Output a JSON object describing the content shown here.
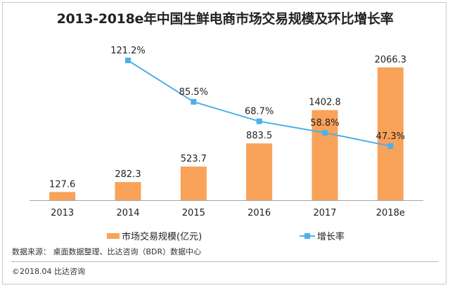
{
  "chart_data": {
    "type": "bar",
    "title": "2013-2018e年中国生鲜电商市场交易规模及环比增长率",
    "categories": [
      "2013",
      "2014",
      "2015",
      "2016",
      "2017",
      "2018e"
    ],
    "xlabel": "",
    "ylabel": "",
    "grid": false,
    "legend_position": "bottom",
    "series": [
      {
        "name": "市场交易规模(亿元)",
        "type": "bar",
        "color": "#f9a25a",
        "values": [
          127.6,
          282.3,
          523.7,
          883.5,
          1402.8,
          2066.3
        ],
        "labels": [
          "127.6",
          "282.3",
          "523.7",
          "883.5",
          "1402.8",
          "2066.3"
        ]
      },
      {
        "name": "增长率",
        "type": "line",
        "color": "#4eb0ea",
        "unit": "%",
        "values": [
          null,
          121.2,
          85.5,
          68.7,
          58.8,
          47.3
        ],
        "labels": [
          "",
          "121.2%",
          "85.5%",
          "68.7%",
          "58.8%",
          "47.3%"
        ]
      }
    ],
    "ylim_bar": [
      0,
      2200
    ],
    "ylim_line": [
      0,
      140
    ]
  },
  "legend": {
    "bar_label": "市场交易规模(亿元)",
    "line_label": "增长率"
  },
  "footer": {
    "source": "数据来源： 桌面数据整理、比达咨询（BDR）数据中心",
    "copyright": "©2018.04  比达咨询"
  }
}
